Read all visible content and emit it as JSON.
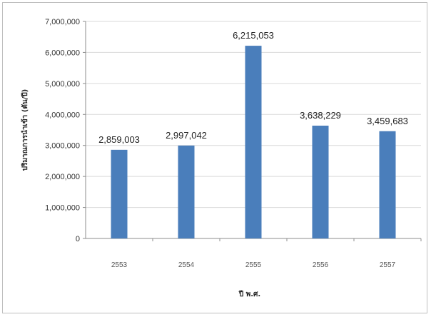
{
  "chart_data": {
    "type": "bar",
    "title": "",
    "xlabel": "ปี พ.ศ.",
    "ylabel": "ปริมาณการนำเข้า (ตัน/ปี)",
    "categories": [
      "2553",
      "2554",
      "2555",
      "2556",
      "2557"
    ],
    "values": [
      2859003,
      2997042,
      6215053,
      3638229,
      3459683
    ],
    "value_labels": [
      "2,859,003",
      "2,997,042",
      "6,215,053",
      "3,638,229",
      "3,459,683"
    ],
    "ylim": [
      0,
      7000000
    ],
    "yticks": [
      0,
      1000000,
      2000000,
      3000000,
      4000000,
      5000000,
      6000000,
      7000000
    ],
    "ytick_labels": [
      "0",
      "1,000,000",
      "2,000,000",
      "3,000,000",
      "4,000,000",
      "5,000,000",
      "6,000,000",
      "7,000,000"
    ],
    "grid": true,
    "legend": "none",
    "bar_color": "#4a7ebb",
    "grid_color": "#d9d9d9"
  }
}
